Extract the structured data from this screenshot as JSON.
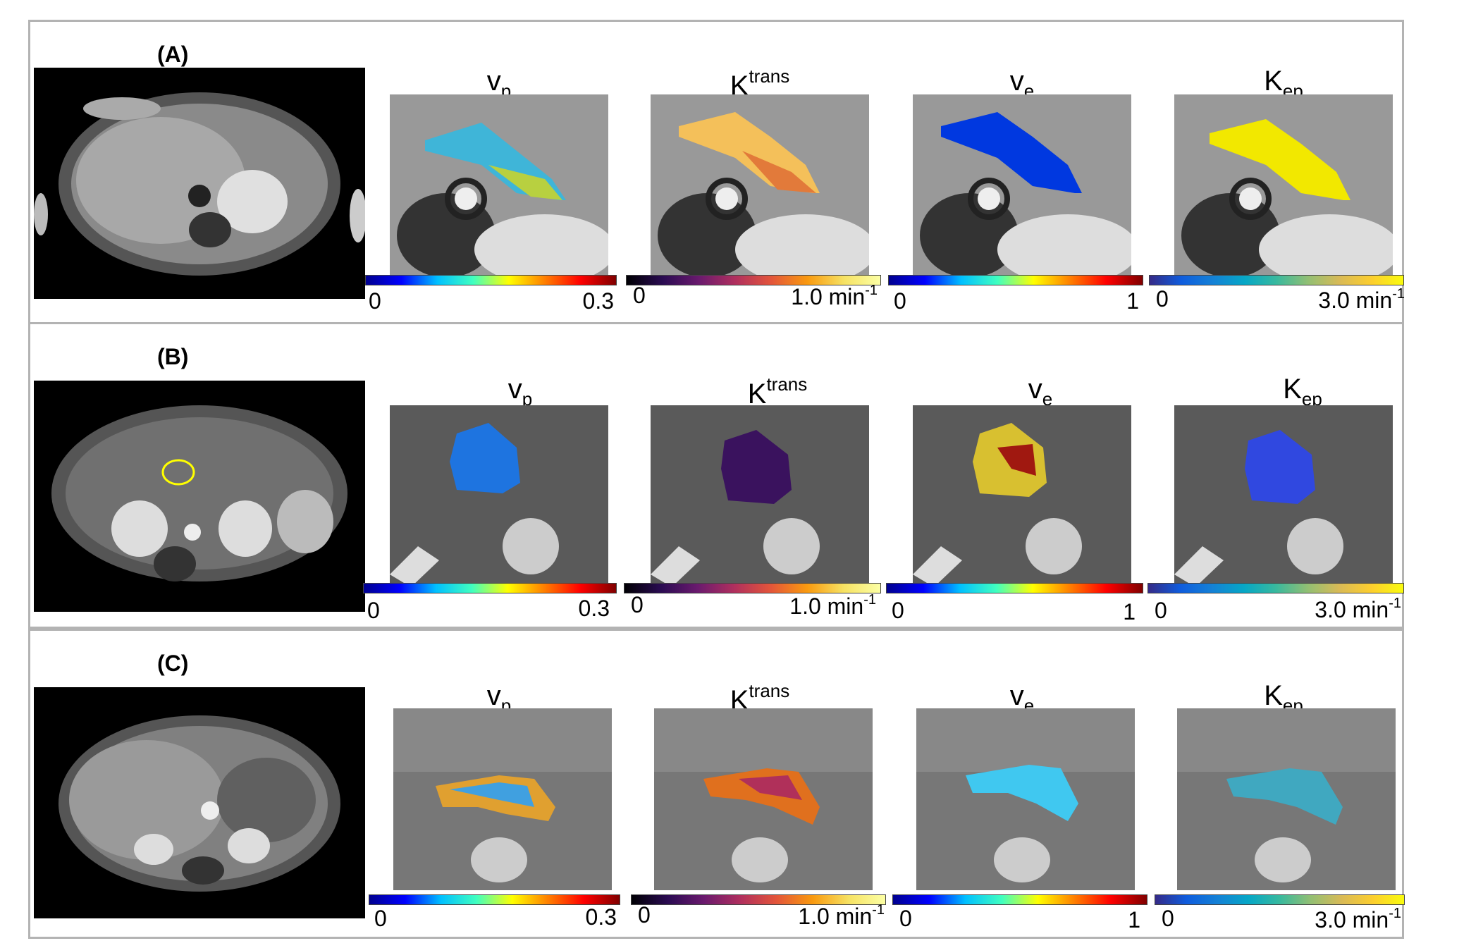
{
  "panels": [
    {
      "label": "(A)",
      "maps": [
        {
          "name": "v",
          "sub": "p",
          "sup": "",
          "cmap": "jet",
          "min": "0",
          "max": "0.3",
          "unit_exp": ""
        },
        {
          "name": "K",
          "sub": "",
          "sup": "trans",
          "cmap": "inferno",
          "min": "0",
          "max": "1.0 min",
          "unit_exp": "-1"
        },
        {
          "name": "v",
          "sub": "e",
          "sup": "",
          "cmap": "jet",
          "min": "0",
          "max": "1",
          "unit_exp": ""
        },
        {
          "name": "K",
          "sub": "ep",
          "sup": "",
          "cmap": "parula",
          "min": "0",
          "max": "3.0 min",
          "unit_exp": "-1"
        }
      ]
    },
    {
      "label": "(B)",
      "maps": [
        {
          "name": "v",
          "sub": "p",
          "sup": "",
          "cmap": "jet",
          "min": "0",
          "max": "0.3",
          "unit_exp": ""
        },
        {
          "name": "K",
          "sub": "",
          "sup": "trans",
          "cmap": "inferno",
          "min": "0",
          "max": "1.0 min",
          "unit_exp": "-1"
        },
        {
          "name": "v",
          "sub": "e",
          "sup": "",
          "cmap": "jet",
          "min": "0",
          "max": "1",
          "unit_exp": ""
        },
        {
          "name": "K",
          "sub": "ep",
          "sup": "",
          "cmap": "parula",
          "min": "0",
          "max": "3.0 min",
          "unit_exp": "-1"
        }
      ]
    },
    {
      "label": "(C)",
      "maps": [
        {
          "name": "v",
          "sub": "p",
          "sup": "",
          "cmap": "jet",
          "min": "0",
          "max": "0.3",
          "unit_exp": ""
        },
        {
          "name": "K",
          "sub": "",
          "sup": "trans",
          "cmap": "inferno",
          "min": "0",
          "max": "1.0 min",
          "unit_exp": "-1"
        },
        {
          "name": "v",
          "sub": "e",
          "sup": "",
          "cmap": "jet",
          "min": "0",
          "max": "1",
          "unit_exp": ""
        },
        {
          "name": "K",
          "sub": "ep",
          "sup": "",
          "cmap": "parula",
          "min": "0",
          "max": "3.0 min",
          "unit_exp": "-1"
        }
      ]
    }
  ],
  "overlay_colors": {
    "panelA": [
      "#e8e020",
      "#2080e0",
      "#0030e0",
      "#f0e800"
    ],
    "panelB": [
      "#2060e0",
      "#3a1060",
      "#e0c020",
      "#3050e0"
    ],
    "panelC": [
      "#e08030",
      "#e05020",
      "#40c0e0",
      "#40a0c0"
    ],
    "roi_outline": "#ffff00",
    "panel_border": "#b3b3b3"
  }
}
